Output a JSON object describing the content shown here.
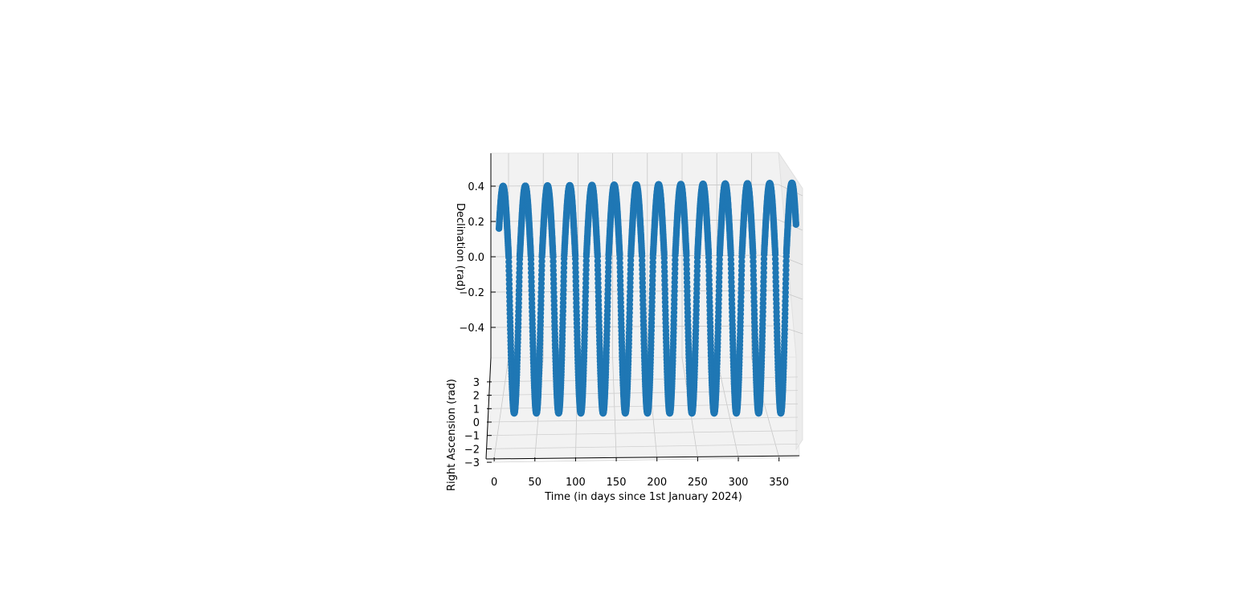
{
  "chart_data": {
    "type": "scatter",
    "projection": "3d",
    "title": "",
    "xlabel": "Time (in days since 1st January 2024)",
    "ylabel": "Right Ascension (rad)",
    "zlabel": "Declination (rad)",
    "xlim": [
      -10,
      375
    ],
    "ylim": [
      -3.2,
      3.2
    ],
    "zlim": [
      -0.55,
      0.55
    ],
    "x_ticks": [
      "0",
      "50",
      "100",
      "150",
      "200",
      "250",
      "300",
      "350"
    ],
    "y_ticks": [
      "−3",
      "−2",
      "−1",
      "0",
      "1",
      "2",
      "3"
    ],
    "z_ticks": [
      "−0.4",
      "−0.2",
      "0.0",
      "0.2",
      "0.4"
    ],
    "grid": true,
    "marker_color": "#1f77b4",
    "series": [
      {
        "x_range": [
          0,
          365
        ],
        "dec_amplitude": 0.4,
        "dec_period_days": 27.3,
        "dec_at_start": 0.16,
        "ra_range": [
          -3.14,
          3.14
        ],
        "ra_period_days": 27.3
      }
    ]
  }
}
